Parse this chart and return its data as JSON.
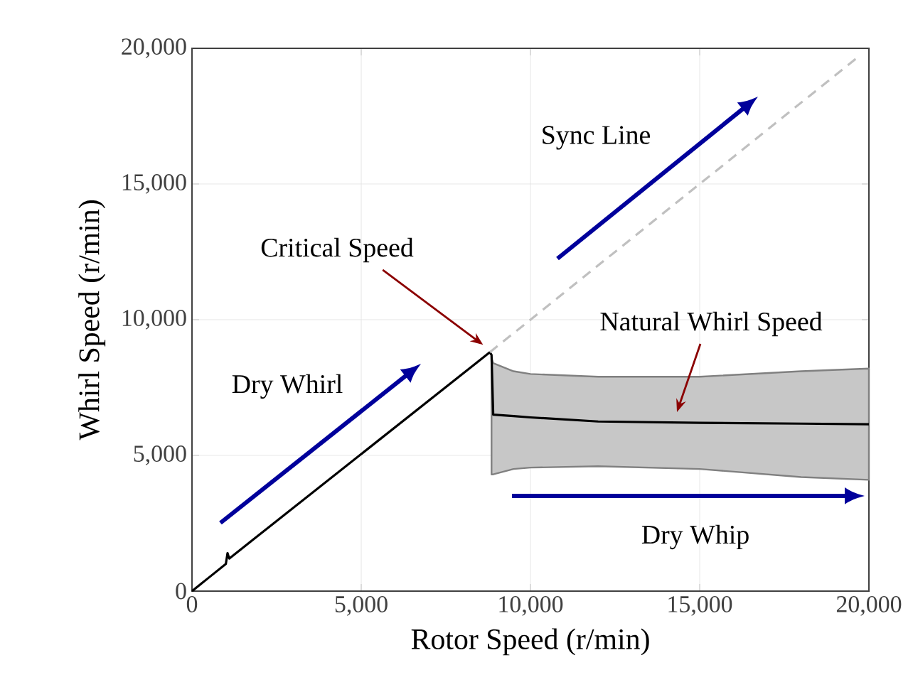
{
  "chart_data": {
    "type": "line",
    "xlabel": "Rotor Speed (r/min)",
    "ylabel": "Whirl Speed (r/min)",
    "xlim": [
      0,
      20000
    ],
    "ylim": [
      0,
      20000
    ],
    "xticks": [
      0,
      {
        "value": 5000,
        "label": "5,000"
      },
      {
        "value": 10000,
        "label": "10,000"
      },
      {
        "value": 15000,
        "label": "15,000"
      },
      {
        "value": 20000,
        "label": "20,000"
      }
    ],
    "yticks": [
      0,
      {
        "value": 5000,
        "label": "5,000"
      },
      {
        "value": 10000,
        "label": "10,000"
      },
      {
        "value": 15000,
        "label": "15,000"
      },
      {
        "value": 20000,
        "label": "20,000"
      }
    ],
    "grid": true,
    "series": [
      {
        "color": "#000000",
        "line_style": "solid",
        "x": [
          0,
          300,
          500,
          1000,
          1050,
          1100,
          8800,
          8850,
          8900,
          9500,
          10000,
          12000,
          15000,
          18000,
          20000
        ],
        "values": [
          0,
          300,
          500,
          1000,
          1400,
          1200,
          8800,
          8700,
          6500,
          6450,
          6400,
          6250,
          6200,
          6170,
          6150
        ],
        "lower": [
          null,
          null,
          null,
          null,
          null,
          null,
          null,
          4300,
          4300,
          4500,
          4550,
          4600,
          4500,
          4200,
          4100
        ],
        "upper": [
          null,
          null,
          null,
          null,
          null,
          null,
          null,
          8600,
          8400,
          8100,
          8000,
          7900,
          7900,
          8100,
          8200
        ]
      },
      {
        "color": "#c0c0c0",
        "line_style": "dashed",
        "x": [
          8800,
          19700
        ],
        "values": [
          8800,
          19700
        ]
      }
    ],
    "annotations": [
      "Critical Speed",
      "Natural Whirl Speed",
      "Sync Line",
      "Dry Whirl",
      "Dry Whip"
    ]
  }
}
